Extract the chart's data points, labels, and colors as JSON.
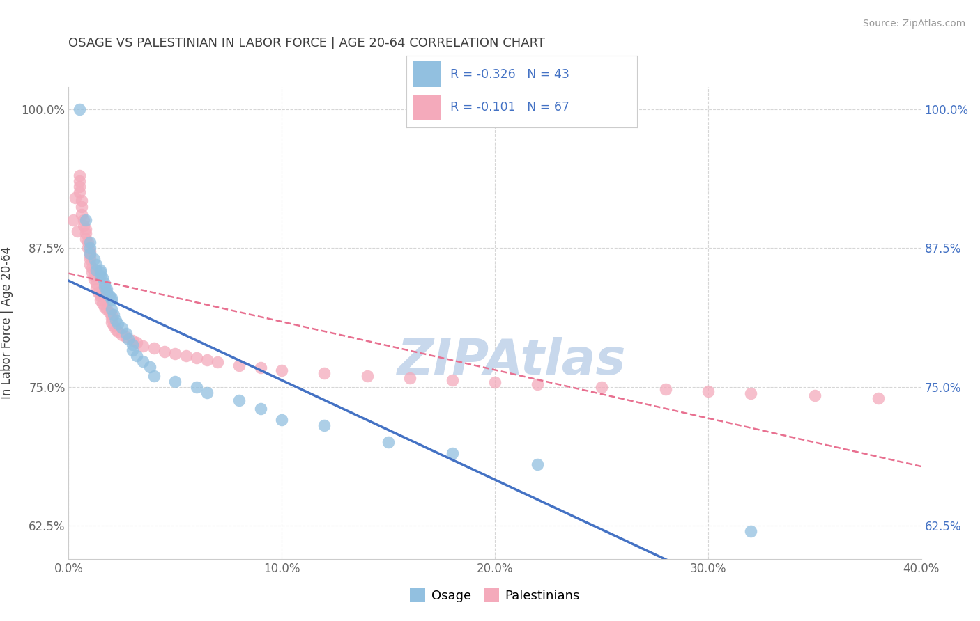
{
  "title": "OSAGE VS PALESTINIAN IN LABOR FORCE | AGE 20-64 CORRELATION CHART",
  "source_text": "Source: ZipAtlas.com",
  "ylabel": "In Labor Force | Age 20-64",
  "legend_R": [
    -0.326,
    -0.101
  ],
  "legend_N": [
    43,
    67
  ],
  "xlim": [
    0.0,
    0.4
  ],
  "ylim": [
    0.595,
    1.02
  ],
  "xticks": [
    0.0,
    0.1,
    0.2,
    0.3,
    0.4
  ],
  "xticklabels": [
    "0.0%",
    "10.0%",
    "20.0%",
    "30.0%",
    "40.0%"
  ],
  "yticks": [
    0.625,
    0.75,
    0.875,
    1.0
  ],
  "yticklabels": [
    "62.5%",
    "75.0%",
    "87.5%",
    "100.0%"
  ],
  "blue_color": "#92C0E0",
  "pink_color": "#F4AABB",
  "blue_line_color": "#4472C4",
  "pink_line_color": "#E87090",
  "title_color": "#404040",
  "source_color": "#999999",
  "watermark_color": "#C8D8EC",
  "grid_color": "#CCCCCC",
  "background_color": "#FFFFFF",
  "osage_x": [
    0.005,
    0.008,
    0.01,
    0.01,
    0.01,
    0.012,
    0.013,
    0.013,
    0.015,
    0.015,
    0.015,
    0.016,
    0.017,
    0.017,
    0.018,
    0.018,
    0.019,
    0.02,
    0.02,
    0.02,
    0.021,
    0.022,
    0.023,
    0.025,
    0.027,
    0.028,
    0.03,
    0.03,
    0.032,
    0.035,
    0.038,
    0.04,
    0.05,
    0.06,
    0.065,
    0.08,
    0.09,
    0.1,
    0.12,
    0.15,
    0.18,
    0.22,
    0.32
  ],
  "osage_y": [
    1.0,
    0.9,
    0.88,
    0.875,
    0.87,
    0.865,
    0.86,
    0.855,
    0.855,
    0.853,
    0.85,
    0.848,
    0.843,
    0.84,
    0.838,
    0.835,
    0.832,
    0.83,
    0.828,
    0.82,
    0.815,
    0.81,
    0.807,
    0.803,
    0.798,
    0.793,
    0.788,
    0.783,
    0.778,
    0.773,
    0.768,
    0.76,
    0.755,
    0.75,
    0.745,
    0.738,
    0.73,
    0.72,
    0.715,
    0.7,
    0.69,
    0.68,
    0.62
  ],
  "palestinians_x": [
    0.002,
    0.003,
    0.004,
    0.005,
    0.005,
    0.005,
    0.005,
    0.006,
    0.006,
    0.006,
    0.007,
    0.007,
    0.008,
    0.008,
    0.008,
    0.009,
    0.009,
    0.01,
    0.01,
    0.01,
    0.01,
    0.011,
    0.011,
    0.012,
    0.012,
    0.013,
    0.013,
    0.014,
    0.015,
    0.015,
    0.016,
    0.017,
    0.018,
    0.019,
    0.02,
    0.02,
    0.02,
    0.021,
    0.022,
    0.023,
    0.025,
    0.027,
    0.03,
    0.032,
    0.035,
    0.04,
    0.045,
    0.05,
    0.055,
    0.06,
    0.065,
    0.07,
    0.08,
    0.09,
    0.1,
    0.12,
    0.14,
    0.16,
    0.18,
    0.2,
    0.22,
    0.25,
    0.28,
    0.3,
    0.32,
    0.35,
    0.38
  ],
  "palestinians_y": [
    0.9,
    0.92,
    0.89,
    0.94,
    0.935,
    0.93,
    0.925,
    0.918,
    0.912,
    0.905,
    0.9,
    0.895,
    0.892,
    0.888,
    0.883,
    0.88,
    0.875,
    0.872,
    0.868,
    0.865,
    0.86,
    0.857,
    0.853,
    0.85,
    0.847,
    0.843,
    0.838,
    0.835,
    0.832,
    0.828,
    0.825,
    0.822,
    0.82,
    0.817,
    0.815,
    0.812,
    0.808,
    0.805,
    0.802,
    0.8,
    0.797,
    0.795,
    0.792,
    0.79,
    0.787,
    0.785,
    0.782,
    0.78,
    0.778,
    0.776,
    0.774,
    0.772,
    0.769,
    0.767,
    0.765,
    0.762,
    0.76,
    0.758,
    0.756,
    0.754,
    0.752,
    0.75,
    0.748,
    0.746,
    0.744,
    0.742,
    0.74
  ]
}
